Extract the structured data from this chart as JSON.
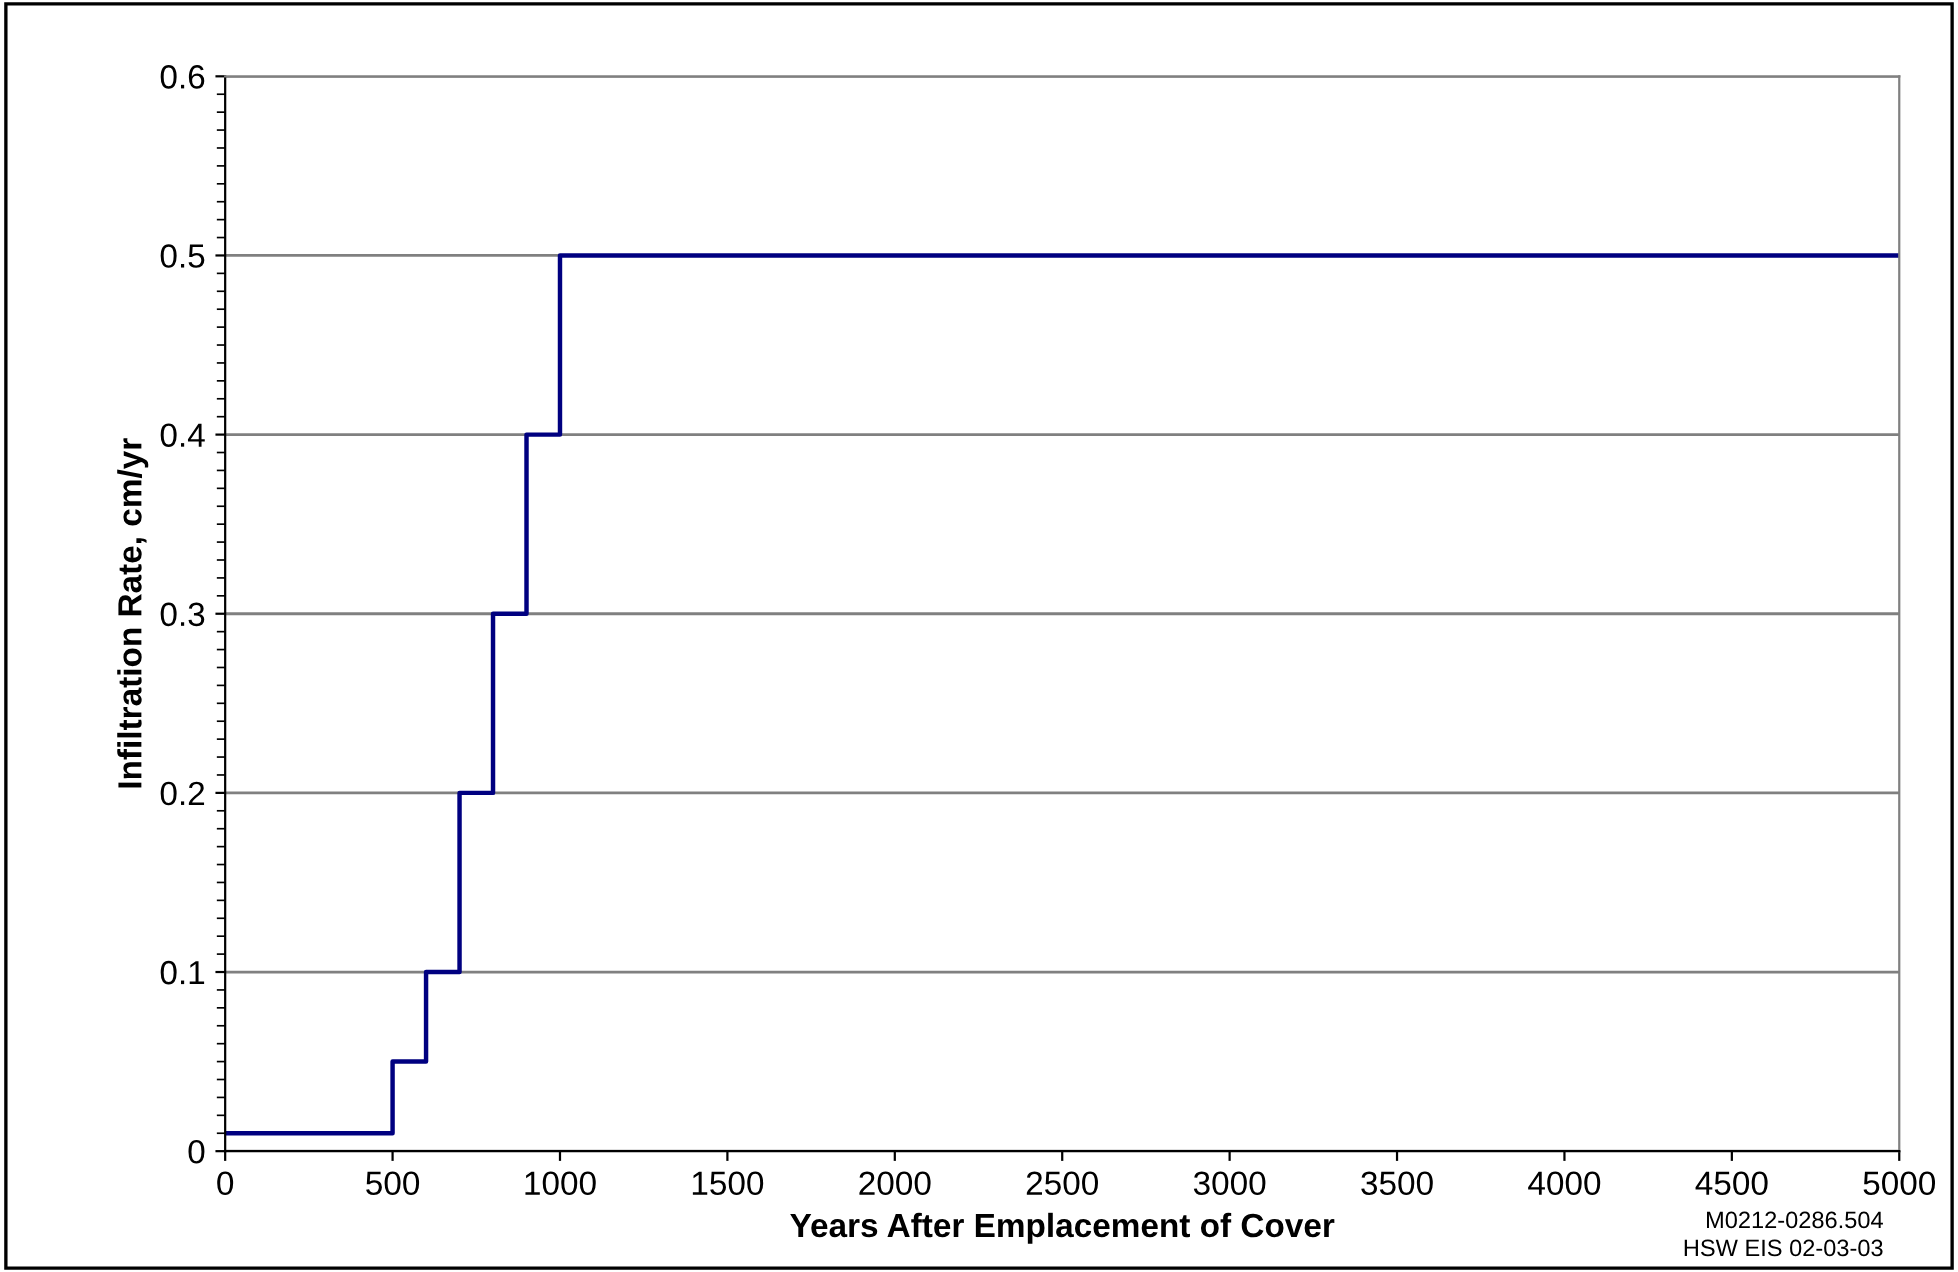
{
  "chart_data": {
    "type": "step",
    "xlabel": "Years After Emplacement of Cover",
    "ylabel": "Infiltration Rate, cm/yr",
    "x": [
      0,
      500,
      600,
      700,
      800,
      900,
      1000,
      5000
    ],
    "series": [
      {
        "color": "#000080",
        "values": [
          0.01,
          0.05,
          0.1,
          0.2,
          0.3,
          0.4,
          0.5,
          0.5
        ]
      }
    ],
    "xlim": [
      0,
      5000
    ],
    "xticks": [
      0,
      500,
      1000,
      1500,
      2000,
      2500,
      3000,
      3500,
      4000,
      4500,
      5000
    ],
    "ylim": [
      0,
      0.6
    ],
    "yticks": [
      0,
      0.1,
      0.2,
      0.3,
      0.4,
      0.5,
      0.6
    ],
    "grid": "y",
    "marker": "none",
    "line_style": "solid",
    "annotations": [
      "M0212-0286.504",
      "HSW EIS 02-03-03"
    ]
  }
}
